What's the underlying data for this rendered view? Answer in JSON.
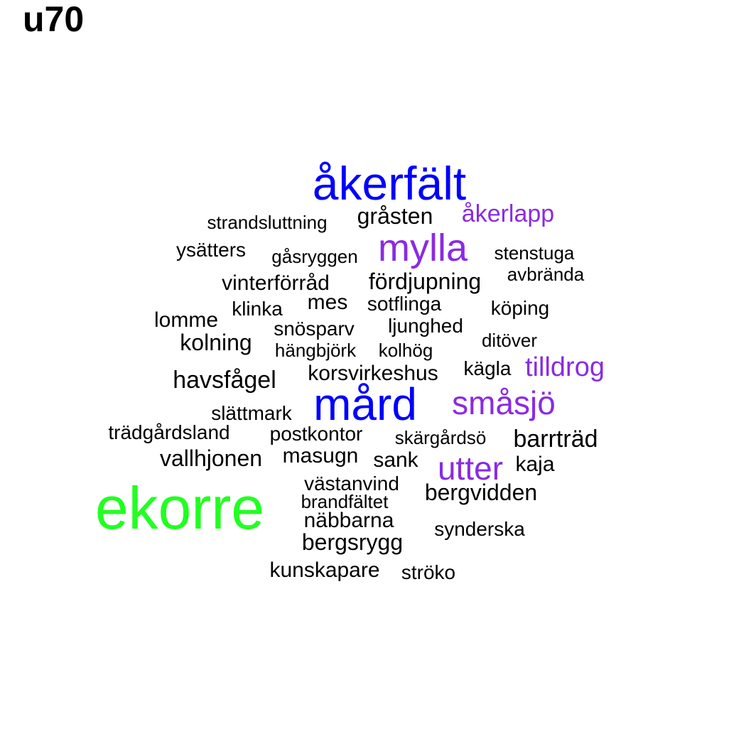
{
  "title": "u70",
  "colors": {
    "black": "#000000",
    "blue": "#0000ff",
    "purple": "#8a2be2",
    "green": "#22ff22"
  },
  "words": [
    {
      "text": "åkerfält",
      "color": "blue"
    },
    {
      "text": "gråsten",
      "color": "black"
    },
    {
      "text": "åkerlapp",
      "color": "purple"
    },
    {
      "text": "strandsluttning",
      "color": "black"
    },
    {
      "text": "mylla",
      "color": "purple"
    },
    {
      "text": "ysätters",
      "color": "black"
    },
    {
      "text": "gåsryggen",
      "color": "black"
    },
    {
      "text": "stenstuga",
      "color": "black"
    },
    {
      "text": "avbrända",
      "color": "black"
    },
    {
      "text": "fördjupning",
      "color": "black"
    },
    {
      "text": "vinterförråd",
      "color": "black"
    },
    {
      "text": "mes",
      "color": "black"
    },
    {
      "text": "sotflinga",
      "color": "black"
    },
    {
      "text": "klinka",
      "color": "black"
    },
    {
      "text": "köping",
      "color": "black"
    },
    {
      "text": "lomme",
      "color": "black"
    },
    {
      "text": "ljunghed",
      "color": "black"
    },
    {
      "text": "snösparv",
      "color": "black"
    },
    {
      "text": "ditöver",
      "color": "black"
    },
    {
      "text": "kolning",
      "color": "black"
    },
    {
      "text": "hängbjörk",
      "color": "black"
    },
    {
      "text": "kolhög",
      "color": "black"
    },
    {
      "text": "tilldrog",
      "color": "purple"
    },
    {
      "text": "kägla",
      "color": "black"
    },
    {
      "text": "korsvirkeshus",
      "color": "black"
    },
    {
      "text": "havsfågel",
      "color": "black"
    },
    {
      "text": "mård",
      "color": "blue"
    },
    {
      "text": "småsjö",
      "color": "purple"
    },
    {
      "text": "slättmark",
      "color": "black"
    },
    {
      "text": "trädgårdsland",
      "color": "black"
    },
    {
      "text": "postkontor",
      "color": "black"
    },
    {
      "text": "skärgårdsö",
      "color": "black"
    },
    {
      "text": "barrträd",
      "color": "black"
    },
    {
      "text": "vallhjonen",
      "color": "black"
    },
    {
      "text": "masugn",
      "color": "black"
    },
    {
      "text": "sank",
      "color": "black"
    },
    {
      "text": "utter",
      "color": "purple"
    },
    {
      "text": "kaja",
      "color": "black"
    },
    {
      "text": "västanvind",
      "color": "black"
    },
    {
      "text": "bergvidden",
      "color": "black"
    },
    {
      "text": "ekorre",
      "color": "green"
    },
    {
      "text": "brandfältet",
      "color": "black"
    },
    {
      "text": "näbbarna",
      "color": "black"
    },
    {
      "text": "synderska",
      "color": "black"
    },
    {
      "text": "bergsrygg",
      "color": "black"
    },
    {
      "text": "kunskapare",
      "color": "black"
    },
    {
      "text": "ströko",
      "color": "black"
    }
  ]
}
